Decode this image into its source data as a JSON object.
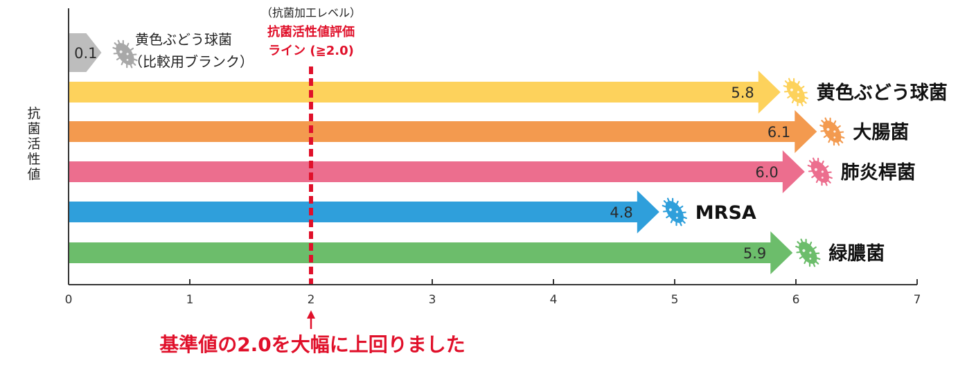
{
  "chart_data": {
    "type": "bar",
    "orientation": "horizontal",
    "ylabel": "抗菌活性値",
    "xlim": [
      0,
      7
    ],
    "x_ticks": [
      "0",
      "1",
      "2",
      "3",
      "4",
      "5",
      "6",
      "7"
    ],
    "grid": false,
    "reference_line": {
      "value": 2.0,
      "label_top": "（抗菌加工レベル）",
      "label_line1": "抗菌活性値評価",
      "label_line2": "ライン (≧2.0)",
      "note": "基準値の2.0を大幅に上回りました",
      "color": "#e0102a"
    },
    "comparison": {
      "value": 0.1,
      "value_label": "0.1",
      "label_line1": "黄色ぶどう球菌",
      "label_line2": "（比較用ブランク）",
      "color": "#bdbdbd"
    },
    "series": [
      {
        "name": "黄色ぶどう球菌",
        "value": 5.8,
        "value_label": "5.8",
        "color": "#fdd25c",
        "icon": "bacteria-icon"
      },
      {
        "name": "大腸菌",
        "value": 6.1,
        "value_label": "6.1",
        "color": "#f39a4f",
        "icon": "bacteria-icon"
      },
      {
        "name": "肺炎桿菌",
        "value": 6.0,
        "value_label": "6.0",
        "color": "#ec6e8e",
        "icon": "bacteria-icon"
      },
      {
        "name": "MRSA",
        "value": 4.8,
        "value_label": "4.8",
        "color": "#2f9fdb",
        "icon": "bacteria-icon"
      },
      {
        "name": "緑膿菌",
        "value": 5.9,
        "value_label": "5.9",
        "color": "#6cbd6b",
        "icon": "bacteria-icon"
      }
    ]
  }
}
